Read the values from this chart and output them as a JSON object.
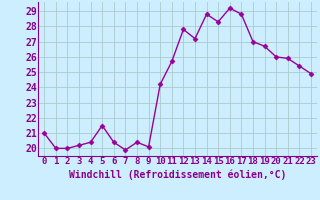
{
  "x": [
    0,
    1,
    2,
    3,
    4,
    5,
    6,
    7,
    8,
    9,
    10,
    11,
    12,
    13,
    14,
    15,
    16,
    17,
    18,
    19,
    20,
    21,
    22,
    23
  ],
  "y": [
    21.0,
    20.0,
    20.0,
    20.2,
    20.4,
    21.5,
    20.4,
    19.9,
    20.4,
    20.1,
    24.2,
    25.7,
    27.8,
    27.2,
    28.8,
    28.3,
    29.2,
    28.8,
    27.0,
    26.7,
    26.0,
    25.9,
    25.4,
    24.9
  ],
  "line_color": "#990099",
  "marker": "D",
  "markersize": 2.5,
  "linewidth": 1.0,
  "background_color": "#cceeff",
  "grid_color": "#aacccc",
  "ylim": [
    19.5,
    29.6
  ],
  "yticks": [
    20,
    21,
    22,
    23,
    24,
    25,
    26,
    27,
    28,
    29
  ],
  "xtick_labels": [
    "0",
    "1",
    "2",
    "3",
    "4",
    "5",
    "6",
    "7",
    "8",
    "9",
    "10",
    "11",
    "12",
    "13",
    "14",
    "15",
    "16",
    "17",
    "18",
    "19",
    "20",
    "21",
    "22",
    "23"
  ],
  "xlabel": "Windchill (Refroidissement éolien,°C)",
  "xlabel_fontsize": 7,
  "tick_fontsize": 6.5,
  "ytick_fontsize": 7,
  "label_color": "#880088"
}
